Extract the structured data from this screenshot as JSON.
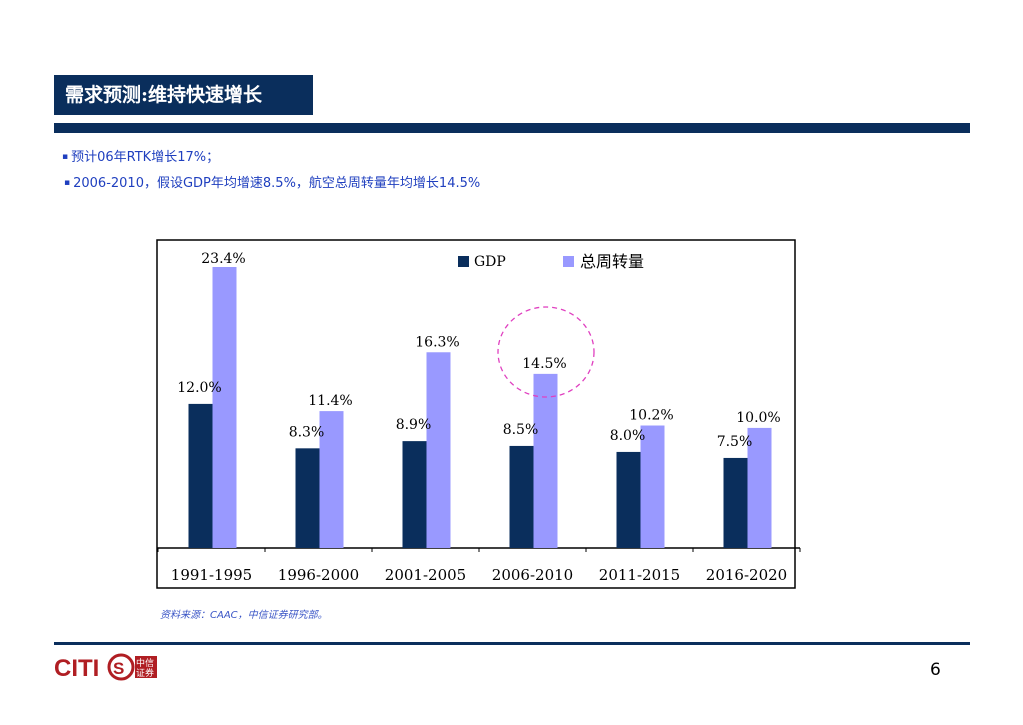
{
  "header": {
    "title": "需求预测:维持快速增长"
  },
  "bullets": [
    {
      "marker": "▪",
      "text": "预计06年RTK增长17%；"
    },
    {
      "marker": "▪",
      "text": "2006-2010，假设GDP年均增速8.5%，航空总周转量年均增长14.5%"
    }
  ],
  "chart_data": {
    "type": "bar",
    "categories": [
      "1991-1995",
      "1996-2000",
      "2001-2005",
      "2006-2010",
      "2011-2015",
      "2016-2020"
    ],
    "series": [
      {
        "name": "GDP",
        "values": [
          12.0,
          8.3,
          8.9,
          8.5,
          8.0,
          7.5
        ],
        "labels": [
          "12.0%",
          "8.3%",
          "8.9%",
          "8.5%",
          "8.0%",
          "7.5%"
        ],
        "color": "#0a2e5c"
      },
      {
        "name": "总周转量",
        "values": [
          23.4,
          11.4,
          16.3,
          14.5,
          10.2,
          10.0
        ],
        "labels": [
          "23.4%",
          "11.4%",
          "16.3%",
          "14.5%",
          "10.2%",
          "10.0%"
        ],
        "color": "#9999ff"
      }
    ],
    "ylim": [
      0,
      24
    ],
    "legend": "top",
    "highlight": {
      "category": "2006-2010",
      "style": "dashed-circle",
      "color": "#e040c0"
    }
  },
  "footer": {
    "source": "资料来源：CAAC，中信证券研究部。",
    "page_number": "6",
    "logo": {
      "brand": "CITICS",
      "chars": "中信证券"
    }
  },
  "colors": {
    "navy": "#0a2e5c",
    "bar_light": "#9999ff",
    "bullet_text": "#1f3fbf"
  }
}
